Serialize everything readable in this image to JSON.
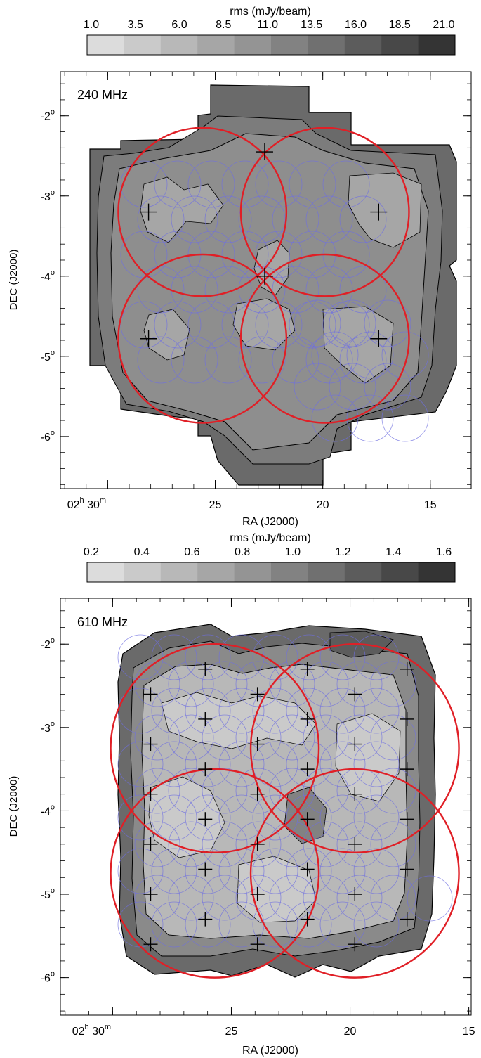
{
  "chart_data": [
    {
      "type": "heatmap",
      "panel_label": "240 MHz",
      "colorbar": {
        "title": "rms (mJy/beam)",
        "ticks": [
          "1.0",
          "3.5",
          "6.0",
          "8.5",
          "11.0",
          "13.5",
          "16.0",
          "18.5",
          "21.0"
        ],
        "range": [
          1.0,
          21.0
        ],
        "levels": 10,
        "colors": [
          "#dcdcdc",
          "#cacaca",
          "#b8b8b8",
          "#a6a6a6",
          "#949494",
          "#828282",
          "#707070",
          "#5c5c5c",
          "#484848",
          "#343434"
        ]
      },
      "xlabel": "RA (J2000)",
      "ylabel": "DEC (J2000)",
      "x_ticks": [
        {
          "ra_min": 30,
          "h": "02",
          "m": "30"
        },
        {
          "ra_min": 25,
          "label": "25"
        },
        {
          "ra_min": 20,
          "label": "20"
        },
        {
          "ra_min": 15,
          "label": "15"
        }
      ],
      "y_ticks": [
        "-2",
        "-3",
        "-4",
        "-5",
        "-6"
      ],
      "y_tick_values": [
        -2,
        -3,
        -4,
        -5,
        -6
      ],
      "xlim": [
        32.2,
        13.1
      ],
      "ylim": [
        -6.65,
        -1.45
      ],
      "large_beams": [
        {
          "ra": 25.6,
          "dec": -3.2,
          "radius_deg": 1.05
        },
        {
          "ra": 19.9,
          "dec": -3.2,
          "radius_deg": 1.05
        },
        {
          "ra": 25.6,
          "dec": -4.78,
          "radius_deg": 1.05
        },
        {
          "ra": 19.9,
          "dec": -4.78,
          "radius_deg": 1.05
        }
      ],
      "pointing_centres": [
        {
          "ra": 28.1,
          "dec": -3.2
        },
        {
          "ra": 22.7,
          "dec": -2.45
        },
        {
          "ra": 17.4,
          "dec": -3.2
        },
        {
          "ra": 22.7,
          "dec": -4.0
        },
        {
          "ra": 28.1,
          "dec": -4.78
        },
        {
          "ra": 17.4,
          "dec": -4.78
        }
      ]
    },
    {
      "type": "heatmap",
      "panel_label": "610 MHz",
      "colorbar": {
        "title": "rms (mJy/beam)",
        "ticks": [
          "0.2",
          "0.4",
          "0.6",
          "0.8",
          "1.0",
          "1.2",
          "1.4",
          "1.6"
        ],
        "range": [
          0.2,
          1.6
        ],
        "levels": 10,
        "colors": [
          "#dcdcdc",
          "#cacaca",
          "#b8b8b8",
          "#a6a6a6",
          "#949494",
          "#828282",
          "#707070",
          "#5c5c5c",
          "#484848",
          "#343434"
        ]
      },
      "xlabel": "RA (J2000)",
      "ylabel": "DEC (J2000)",
      "x_ticks": [
        {
          "ra_min": 30,
          "h": "02",
          "m": "30"
        },
        {
          "ra_min": 25,
          "label": "25"
        },
        {
          "ra_min": 20,
          "label": "20"
        },
        {
          "ra_min": 15,
          "label": "15"
        }
      ],
      "y_ticks": [
        "-2",
        "-3",
        "-4",
        "-5",
        "-6"
      ],
      "y_tick_values": [
        -2,
        -3,
        -4,
        -5,
        -6
      ],
      "xlim": [
        32.2,
        14.9
      ],
      "ylim": [
        -6.45,
        -1.45
      ],
      "large_beams": [
        {
          "ra": 25.7,
          "dec": -3.25,
          "radius_deg": 1.25
        },
        {
          "ra": 19.8,
          "dec": -3.25,
          "radius_deg": 1.25
        },
        {
          "ra": 25.7,
          "dec": -4.75,
          "radius_deg": 1.25
        },
        {
          "ra": 19.8,
          "dec": -4.75,
          "radius_deg": 1.25
        }
      ],
      "pointing_centres": [
        {
          "ra": 26.1,
          "dec": -2.3
        },
        {
          "ra": 21.8,
          "dec": -2.3
        },
        {
          "ra": 17.6,
          "dec": -2.3
        },
        {
          "ra": 28.4,
          "dec": -2.6
        },
        {
          "ra": 23.9,
          "dec": -2.6
        },
        {
          "ra": 19.8,
          "dec": -2.6
        },
        {
          "ra": 26.1,
          "dec": -2.9
        },
        {
          "ra": 21.8,
          "dec": -2.9
        },
        {
          "ra": 17.6,
          "dec": -2.9
        },
        {
          "ra": 28.4,
          "dec": -3.2
        },
        {
          "ra": 23.9,
          "dec": -3.2
        },
        {
          "ra": 19.8,
          "dec": -3.2
        },
        {
          "ra": 26.1,
          "dec": -3.5
        },
        {
          "ra": 21.8,
          "dec": -3.5
        },
        {
          "ra": 17.6,
          "dec": -3.5
        },
        {
          "ra": 28.4,
          "dec": -3.8
        },
        {
          "ra": 23.9,
          "dec": -3.8
        },
        {
          "ra": 19.8,
          "dec": -3.8
        },
        {
          "ra": 26.1,
          "dec": -4.1
        },
        {
          "ra": 21.8,
          "dec": -4.1
        },
        {
          "ra": 17.6,
          "dec": -4.1
        },
        {
          "ra": 28.4,
          "dec": -4.4
        },
        {
          "ra": 23.9,
          "dec": -4.4
        },
        {
          "ra": 19.8,
          "dec": -4.4
        },
        {
          "ra": 26.1,
          "dec": -4.7
        },
        {
          "ra": 21.8,
          "dec": -4.7
        },
        {
          "ra": 17.6,
          "dec": -4.7
        },
        {
          "ra": 28.4,
          "dec": -5.0
        },
        {
          "ra": 23.9,
          "dec": -5.0
        },
        {
          "ra": 19.8,
          "dec": -5.0
        },
        {
          "ra": 26.1,
          "dec": -5.3
        },
        {
          "ra": 21.8,
          "dec": -5.3
        },
        {
          "ra": 17.6,
          "dec": -5.3
        },
        {
          "ra": 28.4,
          "dec": -5.6
        },
        {
          "ra": 23.9,
          "dec": -5.6
        },
        {
          "ra": 19.8,
          "dec": -5.6
        }
      ]
    }
  ]
}
